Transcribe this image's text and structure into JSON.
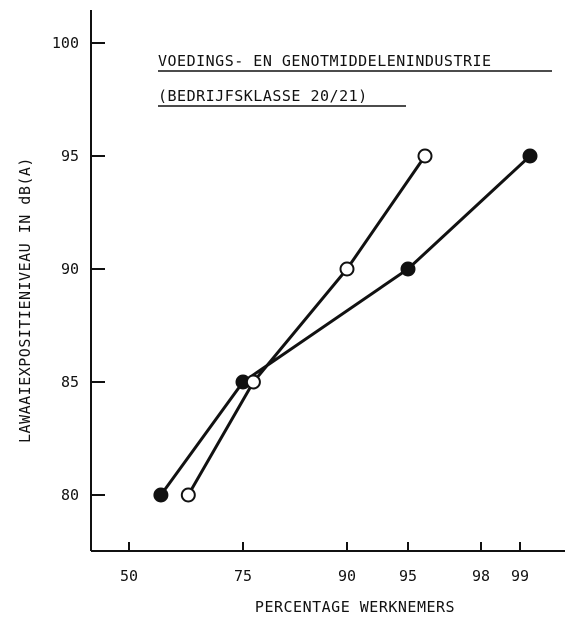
{
  "chart_data": {
    "type": "line",
    "title": "VOEDINGS- EN GENOTMIDDELENINDUSTRIE",
    "subtitle": "(BEDRIJFSKLASSE 20/21)",
    "xlabel": "PERCENTAGE WERKNEMERS",
    "ylabel": "LAWAAIEXPOSITIENIVEAU IN dB(A)",
    "x_scale": "probability",
    "xticks": [
      50,
      75,
      90,
      95,
      98,
      99
    ],
    "xtick_labels": [
      "50",
      "75",
      "90",
      "95",
      "98",
      "99"
    ],
    "yticks": [
      80,
      85,
      90,
      95,
      100
    ],
    "ytick_labels": [
      "80",
      "85",
      "90",
      "95",
      "100"
    ],
    "ylim": [
      77,
      102
    ],
    "grid": false,
    "series": [
      {
        "marker": "filled-circle",
        "color": "#111111",
        "points": [
          {
            "x": 57,
            "y": 80
          },
          {
            "x": 75,
            "y": 85
          },
          {
            "x": 95,
            "y": 90
          },
          {
            "x": 99.2,
            "y": 95
          }
        ]
      },
      {
        "marker": "open-circle",
        "color": "#111111",
        "points": [
          {
            "x": 63,
            "y": 80
          },
          {
            "x": 76.5,
            "y": 85
          },
          {
            "x": 90,
            "y": 90
          },
          {
            "x": 95.7,
            "y": 95
          }
        ]
      }
    ]
  }
}
